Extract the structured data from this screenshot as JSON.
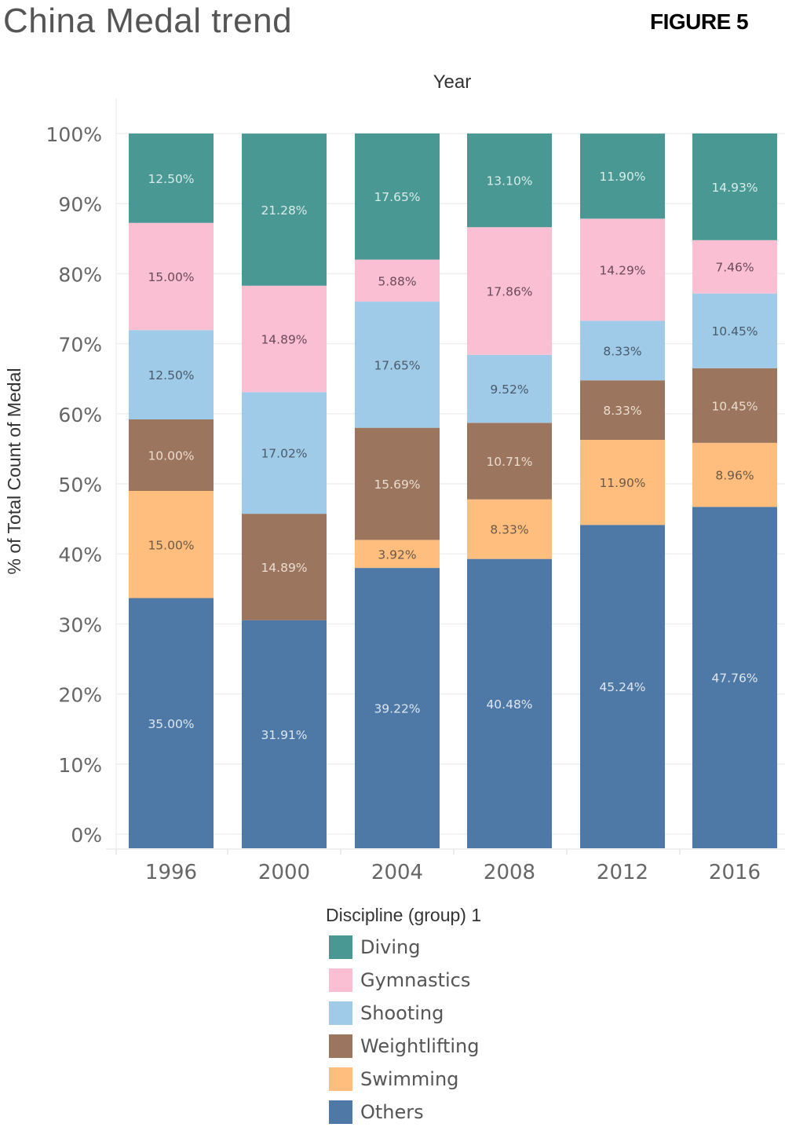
{
  "header": {
    "title": "China Medal trend",
    "figure_label": "FIGURE 5"
  },
  "chart_data": {
    "type": "bar",
    "stacked": true,
    "normalized": true,
    "title": "China Medal trend",
    "xlabel": "Year",
    "ylabel": "% of Total Count of Medal",
    "ylim": [
      0,
      100
    ],
    "yticks": [
      "0%",
      "10%",
      "20%",
      "30%",
      "40%",
      "50%",
      "60%",
      "70%",
      "80%",
      "90%",
      "100%"
    ],
    "grid": true,
    "categories": [
      "1996",
      "2000",
      "2004",
      "2008",
      "2012",
      "2016"
    ],
    "legend_title": "Discipline (group) 1",
    "legend_position": "bottom",
    "series": [
      {
        "name": "Others",
        "color": "#4E79A7",
        "label_color": "#dfe6f0",
        "values": [
          35.0,
          31.91,
          39.22,
          40.48,
          45.24,
          47.76
        ]
      },
      {
        "name": "Swimming",
        "color": "#FFBE7D",
        "label_color": "#6b5a4a",
        "values": [
          15.0,
          0,
          3.92,
          8.33,
          11.9,
          8.96
        ]
      },
      {
        "name": "Weightlifting",
        "color": "#9C755F",
        "label_color": "#eadccf",
        "values": [
          10.0,
          14.89,
          15.69,
          10.71,
          8.33,
          10.45
        ]
      },
      {
        "name": "Shooting",
        "color": "#A0CBE8",
        "label_color": "#4a5a6a",
        "values": [
          12.5,
          17.02,
          17.65,
          9.52,
          8.33,
          10.45
        ]
      },
      {
        "name": "Gymnastics",
        "color": "#FABFD2",
        "label_color": "#6a4a5a",
        "values": [
          15.0,
          14.89,
          5.88,
          17.86,
          14.29,
          7.46
        ]
      },
      {
        "name": "Diving",
        "color": "#499894",
        "label_color": "#d8ece9",
        "values": [
          12.5,
          21.28,
          17.65,
          13.1,
          11.9,
          14.93
        ]
      }
    ],
    "data_labels": [
      [
        "35.00%",
        "15.00%",
        "10.00%",
        "12.50%",
        "15.00%",
        "12.50%"
      ],
      [
        "31.91%",
        "",
        "14.89%",
        "17.02%",
        "14.89%",
        "21.28%"
      ],
      [
        "39.22%",
        "3.92%",
        "15.69%",
        "17.65%",
        "5.88%",
        "17.65%"
      ],
      [
        "40.48%",
        "8.33%",
        "10.71%",
        "9.52%",
        "17.86%",
        "13.10%"
      ],
      [
        "45.24%",
        "11.90%",
        "8.33%",
        "8.33%",
        "14.29%",
        "11.90%"
      ],
      [
        "47.76%",
        "8.96%",
        "10.45%",
        "10.45%",
        "7.46%",
        "14.93%"
      ]
    ]
  },
  "legend": {
    "title": "Discipline (group) 1",
    "items": [
      {
        "label": "Diving",
        "color": "#499894"
      },
      {
        "label": "Gymnastics",
        "color": "#FABFD2"
      },
      {
        "label": "Shooting",
        "color": "#A0CBE8"
      },
      {
        "label": "Weightlifting",
        "color": "#9C755F"
      },
      {
        "label": "Swimming",
        "color": "#FFBE7D"
      },
      {
        "label": "Others",
        "color": "#4E79A7"
      }
    ]
  }
}
